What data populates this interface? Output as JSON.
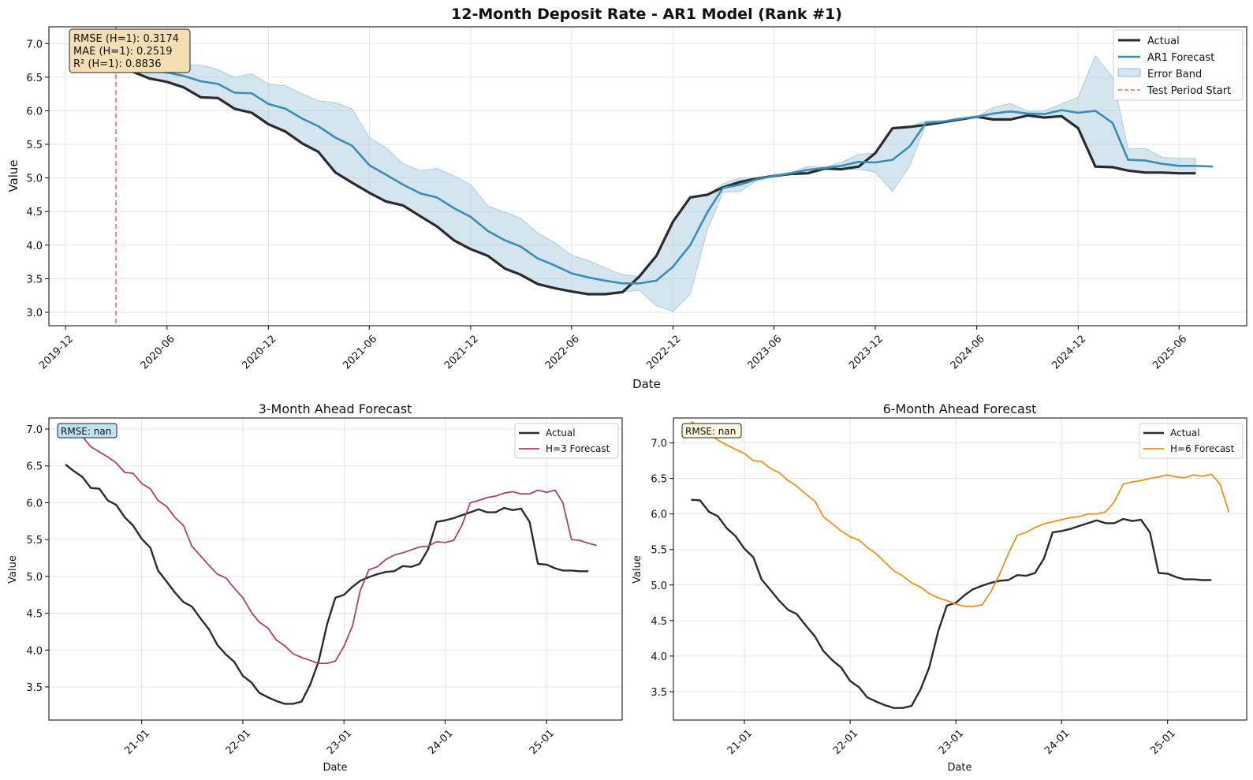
{
  "colors": {
    "actual": "#2b2b2b",
    "ar1": "#3a8db5",
    "band": "#a9cce0",
    "test_start": "#f26d5b",
    "h3": "#a8416f",
    "h6": "#f0901a",
    "grid": "#e3e3e3",
    "stats_bg": "#f5deb3",
    "rmse3_bg": "#bfe2ee",
    "rmse6_bg": "#fbf8df"
  },
  "chart_data": [
    {
      "type": "line",
      "title": "12-Month Deposit Rate - AR1 Model (Rank #1)",
      "xlabel": "Date",
      "ylabel": "Value",
      "x_axis": "date",
      "xlim": [
        "2019-11-01",
        "2025-10-01"
      ],
      "ylim": [
        2.8,
        7.25
      ],
      "x_ticks": [
        "2019-12-01",
        "2020-06-01",
        "2020-12-01",
        "2021-06-01",
        "2021-12-01",
        "2022-06-01",
        "2022-12-01",
        "2023-06-01",
        "2023-12-01",
        "2024-06-01",
        "2024-12-01",
        "2025-06-01"
      ],
      "x_tick_labels": [
        "2019-12",
        "2020-06",
        "2020-12",
        "2021-06",
        "2021-12",
        "2022-06",
        "2022-12",
        "2023-06",
        "2023-12",
        "2024-06",
        "2024-12",
        "2025-06"
      ],
      "y_ticks": [
        3.0,
        3.5,
        4.0,
        4.5,
        5.0,
        5.5,
        6.0,
        6.5,
        7.0
      ],
      "y_tick_labels": [
        "3.0",
        "3.5",
        "4.0",
        "4.5",
        "5.0",
        "5.5",
        "6.0",
        "6.5",
        "7.0"
      ],
      "grid": true,
      "legend": "top-right",
      "x": [
        "2020-03",
        "2020-04",
        "2020-05",
        "2020-06",
        "2020-07",
        "2020-08",
        "2020-09",
        "2020-10",
        "2020-11",
        "2020-12",
        "2021-01",
        "2021-02",
        "2021-03",
        "2021-04",
        "2021-05",
        "2021-06",
        "2021-07",
        "2021-08",
        "2021-09",
        "2021-10",
        "2021-11",
        "2021-12",
        "2022-01",
        "2022-02",
        "2022-03",
        "2022-04",
        "2022-05",
        "2022-06",
        "2022-07",
        "2022-08",
        "2022-09",
        "2022-10",
        "2022-11",
        "2022-12",
        "2023-01",
        "2023-02",
        "2023-03",
        "2023-04",
        "2023-05",
        "2023-06",
        "2023-07",
        "2023-08",
        "2023-09",
        "2023-10",
        "2023-11",
        "2023-12",
        "2024-01",
        "2024-02",
        "2024-03",
        "2024-04",
        "2024-05",
        "2024-06",
        "2024-07",
        "2024-08",
        "2024-09",
        "2024-10",
        "2024-11",
        "2024-12",
        "2025-01",
        "2025-02",
        "2025-03",
        "2025-04",
        "2025-05",
        "2025-06",
        "2025-07",
        "2025-08"
      ],
      "series": [
        {
          "name": "Actual",
          "values": [
            6.7,
            6.58,
            6.48,
            6.43,
            6.35,
            6.2,
            6.19,
            6.03,
            5.97,
            5.8,
            5.69,
            5.51,
            5.39,
            5.08,
            4.93,
            4.78,
            4.65,
            4.59,
            4.43,
            4.28,
            4.07,
            3.94,
            3.84,
            3.65,
            3.56,
            3.42,
            3.36,
            3.31,
            3.27,
            3.27,
            3.3,
            3.53,
            3.84,
            4.35,
            4.71,
            4.75,
            4.86,
            4.94,
            4.99,
            5.03,
            5.06,
            5.07,
            5.14,
            5.13,
            5.17,
            5.37,
            5.74,
            5.76,
            5.79,
            5.83,
            5.87,
            5.91,
            5.87,
            5.87,
            5.93,
            5.9,
            5.92,
            5.74,
            5.17,
            5.16,
            5.11,
            5.08,
            5.08,
            5.07,
            5.07,
            null
          ]
        },
        {
          "name": "AR1 Forecast",
          "values": [
            6.75,
            6.68,
            6.6,
            6.57,
            6.52,
            6.44,
            6.4,
            6.27,
            6.26,
            6.1,
            6.03,
            5.88,
            5.77,
            5.6,
            5.48,
            5.19,
            5.05,
            4.9,
            4.77,
            4.71,
            4.55,
            4.42,
            4.21,
            4.07,
            3.98,
            3.8,
            3.7,
            3.58,
            3.52,
            3.47,
            3.43,
            3.43,
            3.47,
            3.68,
            4.0,
            4.49,
            4.85,
            4.9,
            4.98,
            5.03,
            5.07,
            5.12,
            5.15,
            5.18,
            5.24,
            5.23,
            5.27,
            5.47,
            5.82,
            5.84,
            5.88,
            5.91,
            5.96,
            5.99,
            5.96,
            5.95,
            6.01,
            5.97,
            6.0,
            5.82,
            5.27,
            5.26,
            5.21,
            5.18,
            5.18,
            5.17
          ]
        },
        {
          "name": "Error Band",
          "kind": "band",
          "lower": [
            6.7,
            6.58,
            6.48,
            6.43,
            6.35,
            6.2,
            6.19,
            6.03,
            5.97,
            5.8,
            5.69,
            5.51,
            5.39,
            5.08,
            4.93,
            4.78,
            4.65,
            4.59,
            4.43,
            4.28,
            4.07,
            3.94,
            3.84,
            3.65,
            3.56,
            3.42,
            3.36,
            3.31,
            3.27,
            3.27,
            3.3,
            3.33,
            3.1,
            3.01,
            3.27,
            4.23,
            4.79,
            4.8,
            4.96,
            5.02,
            5.06,
            5.07,
            5.14,
            5.13,
            5.13,
            5.09,
            4.8,
            5.18,
            5.79,
            5.83,
            5.87,
            5.91,
            5.87,
            5.87,
            5.93,
            5.9,
            5.92,
            5.74,
            5.17,
            5.16,
            5.11,
            5.08,
            5.08,
            5.07,
            5.07
          ],
          "upper": [
            6.8,
            6.78,
            6.72,
            6.71,
            6.69,
            6.68,
            6.61,
            6.5,
            6.55,
            6.4,
            6.37,
            6.25,
            6.15,
            6.12,
            6.03,
            5.6,
            5.45,
            5.21,
            5.11,
            5.14,
            5.03,
            4.9,
            4.58,
            4.49,
            4.4,
            4.18,
            4.04,
            3.85,
            3.77,
            3.66,
            3.56,
            3.53,
            3.84,
            4.35,
            4.71,
            4.75,
            4.91,
            5.0,
            5.0,
            5.04,
            5.08,
            5.17,
            5.16,
            5.23,
            5.35,
            5.37,
            5.74,
            5.76,
            5.85,
            5.85,
            5.89,
            5.91,
            6.05,
            6.11,
            5.99,
            6.0,
            6.1,
            6.2,
            6.82,
            6.5,
            5.43,
            5.44,
            5.31,
            5.29,
            5.29
          ]
        },
        {
          "name": "Test Period Start",
          "kind": "vline",
          "x": "2020-03-01"
        }
      ],
      "annotations": [
        "RMSE (H=1): 0.3174",
        "MAE (H=1): 0.2519",
        "R² (H=1): 0.8836"
      ]
    },
    {
      "type": "line",
      "title": "3-Month Ahead Forecast",
      "xlabel": "Date",
      "ylabel": "Value",
      "x_axis": "date",
      "xlim": [
        "2020-02-01",
        "2025-10-01"
      ],
      "ylim": [
        3.05,
        7.15
      ],
      "x_ticks": [
        "2021-01-01",
        "2022-01-01",
        "2023-01-01",
        "2024-01-01",
        "2025-01-01"
      ],
      "x_tick_labels": [
        "21-01",
        "22-01",
        "23-01",
        "24-01",
        "25-01"
      ],
      "y_ticks": [
        3.5,
        4.0,
        4.5,
        5.0,
        5.5,
        6.0,
        6.5,
        7.0
      ],
      "y_tick_labels": [
        "3.5",
        "4.0",
        "4.5",
        "5.0",
        "5.5",
        "6.0",
        "6.5",
        "7.0"
      ],
      "grid": true,
      "legend": "top-right",
      "annotation": "RMSE: nan",
      "series": [
        {
          "name": "Actual",
          "start": "2020-04",
          "values": [
            6.52,
            6.43,
            6.35,
            6.2,
            6.19,
            6.03,
            5.97,
            5.8,
            5.69,
            5.51,
            5.39,
            5.08,
            4.93,
            4.78,
            4.65,
            4.59,
            4.43,
            4.28,
            4.07,
            3.94,
            3.84,
            3.65,
            3.56,
            3.42,
            3.36,
            3.31,
            3.27,
            3.27,
            3.3,
            3.53,
            3.84,
            4.35,
            4.71,
            4.75,
            4.86,
            4.94,
            4.99,
            5.03,
            5.06,
            5.07,
            5.14,
            5.13,
            5.17,
            5.37,
            5.74,
            5.76,
            5.79,
            5.83,
            5.87,
            5.91,
            5.87,
            5.87,
            5.93,
            5.9,
            5.92,
            5.74,
            5.17,
            5.16,
            5.11,
            5.08,
            5.08,
            5.07,
            5.07
          ]
        },
        {
          "name": "H=3 Forecast",
          "start": "2020-04",
          "values": [
            7.05,
            7.0,
            6.9,
            6.76,
            6.69,
            6.62,
            6.54,
            6.41,
            6.4,
            6.26,
            6.19,
            6.03,
            5.95,
            5.8,
            5.69,
            5.41,
            5.28,
            5.15,
            5.03,
            4.98,
            4.84,
            4.71,
            4.51,
            4.38,
            4.3,
            4.14,
            4.06,
            3.95,
            3.9,
            3.86,
            3.82,
            3.82,
            3.85,
            4.05,
            4.33,
            4.81,
            5.09,
            5.13,
            5.23,
            5.29,
            5.32,
            5.36,
            5.4,
            5.41,
            5.47,
            5.46,
            5.49,
            5.69,
            6.0,
            6.03,
            6.07,
            6.09,
            6.13,
            6.15,
            6.12,
            6.12,
            6.17,
            6.14,
            6.17,
            6.0,
            5.5,
            5.49,
            5.45,
            5.42
          ]
        }
      ]
    },
    {
      "type": "line",
      "title": "6-Month Ahead Forecast",
      "xlabel": "Date",
      "ylabel": "Value",
      "x_axis": "date",
      "xlim": [
        "2020-05-01",
        "2025-10-01"
      ],
      "ylim": [
        3.1,
        7.35
      ],
      "x_ticks": [
        "2021-01-01",
        "2022-01-01",
        "2023-01-01",
        "2024-01-01",
        "2025-01-01"
      ],
      "x_tick_labels": [
        "21-01",
        "22-01",
        "23-01",
        "24-01",
        "25-01"
      ],
      "y_ticks": [
        3.5,
        4.0,
        4.5,
        5.0,
        5.5,
        6.0,
        6.5,
        7.0
      ],
      "y_tick_labels": [
        "3.5",
        "4.0",
        "4.5",
        "5.0",
        "5.5",
        "6.0",
        "6.5",
        "7.0"
      ],
      "grid": true,
      "legend": "top-right",
      "annotation": "RMSE: nan",
      "series": [
        {
          "name": "Actual",
          "start": "2020-07",
          "values": [
            6.2,
            6.19,
            6.03,
            5.97,
            5.8,
            5.69,
            5.51,
            5.39,
            5.08,
            4.93,
            4.78,
            4.65,
            4.59,
            4.43,
            4.28,
            4.07,
            3.94,
            3.84,
            3.65,
            3.56,
            3.42,
            3.36,
            3.31,
            3.27,
            3.27,
            3.3,
            3.53,
            3.84,
            4.35,
            4.71,
            4.75,
            4.86,
            4.94,
            4.99,
            5.03,
            5.06,
            5.07,
            5.14,
            5.13,
            5.17,
            5.37,
            5.74,
            5.76,
            5.79,
            5.83,
            5.87,
            5.91,
            5.87,
            5.87,
            5.93,
            5.9,
            5.92,
            5.74,
            5.17,
            5.16,
            5.11,
            5.08,
            5.08,
            5.07,
            5.07
          ]
        },
        {
          "name": "H=6 Forecast",
          "start": "2020-07",
          "values": [
            7.3,
            7.22,
            7.13,
            7.04,
            6.97,
            6.91,
            6.85,
            6.75,
            6.74,
            6.64,
            6.58,
            6.47,
            6.39,
            6.28,
            6.18,
            5.96,
            5.86,
            5.76,
            5.68,
            5.63,
            5.53,
            5.44,
            5.32,
            5.2,
            5.13,
            5.03,
            4.97,
            4.88,
            4.82,
            4.78,
            4.73,
            4.7,
            4.7,
            4.72,
            4.9,
            5.15,
            5.44,
            5.7,
            5.74,
            5.81,
            5.86,
            5.89,
            5.92,
            5.95,
            5.96,
            6.0,
            6.0,
            6.03,
            6.17,
            6.42,
            6.45,
            6.47,
            6.5,
            6.52,
            6.55,
            6.52,
            6.51,
            6.55,
            6.53,
            6.56,
            6.42,
            6.02
          ]
        }
      ]
    }
  ]
}
